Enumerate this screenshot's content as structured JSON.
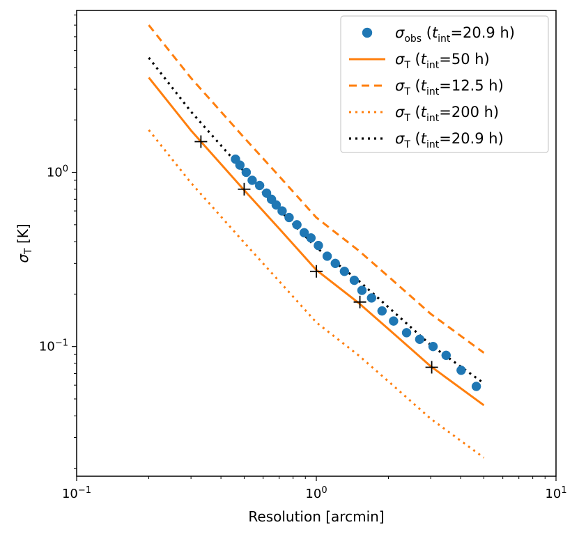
{
  "chart_data": {
    "type": "line",
    "xlabel": "Resolution [arcmin]",
    "ylabel": {
      "main": "σ",
      "sub": "T",
      "unit": " [K]"
    },
    "xscale": "log",
    "yscale": "log",
    "xlim": [
      0.1,
      10
    ],
    "ylim": [
      0.018,
      8.5
    ],
    "xticks": [
      {
        "value": 0.1,
        "base": "10",
        "exp": "−1"
      },
      {
        "value": 1,
        "base": "10",
        "exp": "0"
      },
      {
        "value": 10,
        "base": "10",
        "exp": "1"
      }
    ],
    "yticks": [
      {
        "value": 0.1,
        "base": "10",
        "exp": "−1"
      },
      {
        "value": 1,
        "base": "10",
        "exp": "0"
      }
    ],
    "legend_position": "top-right",
    "colors": {
      "observed": "#1f77b4",
      "theory": "#ff7f0e",
      "matched": "#000000"
    },
    "legend": [
      {
        "key": "obs",
        "sym": "σ",
        "sub": "obs",
        "open": " (",
        "t": "t",
        "tsub": "int",
        "value": "=20.9 h)"
      },
      {
        "key": "t50",
        "sym": "σ",
        "sub": "T",
        "open": " (",
        "t": "t",
        "tsub": "int",
        "value": "=50 h)"
      },
      {
        "key": "t125",
        "sym": "σ",
        "sub": "T",
        "open": " (",
        "t": "t",
        "tsub": "int",
        "value": "=12.5 h)"
      },
      {
        "key": "t200",
        "sym": "σ",
        "sub": "T",
        "open": " (",
        "t": "t",
        "tsub": "int",
        "value": "=200 h)"
      },
      {
        "key": "t209",
        "sym": "σ",
        "sub": "T",
        "open": " (",
        "t": "t",
        "tsub": "int",
        "value": "=20.9 h)"
      }
    ],
    "series": [
      {
        "key": "obs",
        "name": "σobs (tint=20.9 h)",
        "kind": "scatter",
        "color": "#1f77b4",
        "x": [
          0.46,
          0.48,
          0.51,
          0.54,
          0.58,
          0.62,
          0.65,
          0.68,
          0.72,
          0.77,
          0.83,
          0.89,
          0.95,
          1.02,
          1.11,
          1.2,
          1.31,
          1.44,
          1.55,
          1.7,
          1.88,
          2.1,
          2.38,
          2.7,
          3.07,
          3.48,
          4.02,
          4.65
        ],
        "y": [
          1.19,
          1.1,
          1.0,
          0.9,
          0.84,
          0.76,
          0.7,
          0.65,
          0.6,
          0.55,
          0.5,
          0.45,
          0.42,
          0.38,
          0.33,
          0.3,
          0.27,
          0.24,
          0.21,
          0.19,
          0.16,
          0.14,
          0.12,
          0.11,
          0.1,
          0.089,
          0.073,
          0.059
        ]
      },
      {
        "key": "t50",
        "name": "σT (tint=50 h)",
        "kind": "line",
        "style": "solid",
        "color": "#ff7f0e",
        "x": [
          0.2,
          0.3,
          0.5,
          0.7,
          1.0,
          1.5,
          2.0,
          3.0,
          5.0
        ],
        "y": [
          3.5,
          1.74,
          0.79,
          0.475,
          0.275,
          0.178,
          0.126,
          0.077,
          0.046
        ]
      },
      {
        "key": "t125",
        "name": "σT (tint=12.5 h)",
        "kind": "line",
        "style": "dashed",
        "color": "#ff7f0e",
        "x": [
          0.2,
          0.3,
          0.5,
          0.7,
          1.0,
          1.5,
          2.0,
          3.0,
          5.0
        ],
        "y": [
          7.0,
          3.48,
          1.58,
          0.95,
          0.55,
          0.356,
          0.252,
          0.154,
          0.092
        ]
      },
      {
        "key": "t200",
        "name": "σT (tint=200 h)",
        "kind": "line",
        "style": "dotted",
        "color": "#ff7f0e",
        "x": [
          0.2,
          0.3,
          0.5,
          0.7,
          1.0,
          1.5,
          2.0,
          3.0,
          5.0
        ],
        "y": [
          1.75,
          0.87,
          0.395,
          0.237,
          0.1375,
          0.089,
          0.063,
          0.0385,
          0.023
        ]
      },
      {
        "key": "t209",
        "name": "σT (tint=20.9 h)",
        "kind": "line",
        "style": "dotted-thick",
        "color": "#000000",
        "x": [
          0.2,
          0.3,
          0.5,
          0.7,
          1.0,
          1.5,
          2.0,
          3.0,
          5.0
        ],
        "y": [
          4.55,
          2.23,
          1.01,
          0.61,
          0.37,
          0.239,
          0.168,
          0.102,
          0.0615
        ]
      },
      {
        "key": "cross",
        "name": "cross markers",
        "kind": "marker",
        "color": "#000000",
        "x": [
          0.33,
          0.5,
          1.0,
          1.52,
          3.03
        ],
        "y": [
          1.5,
          0.8,
          0.27,
          0.18,
          0.076
        ]
      }
    ]
  }
}
